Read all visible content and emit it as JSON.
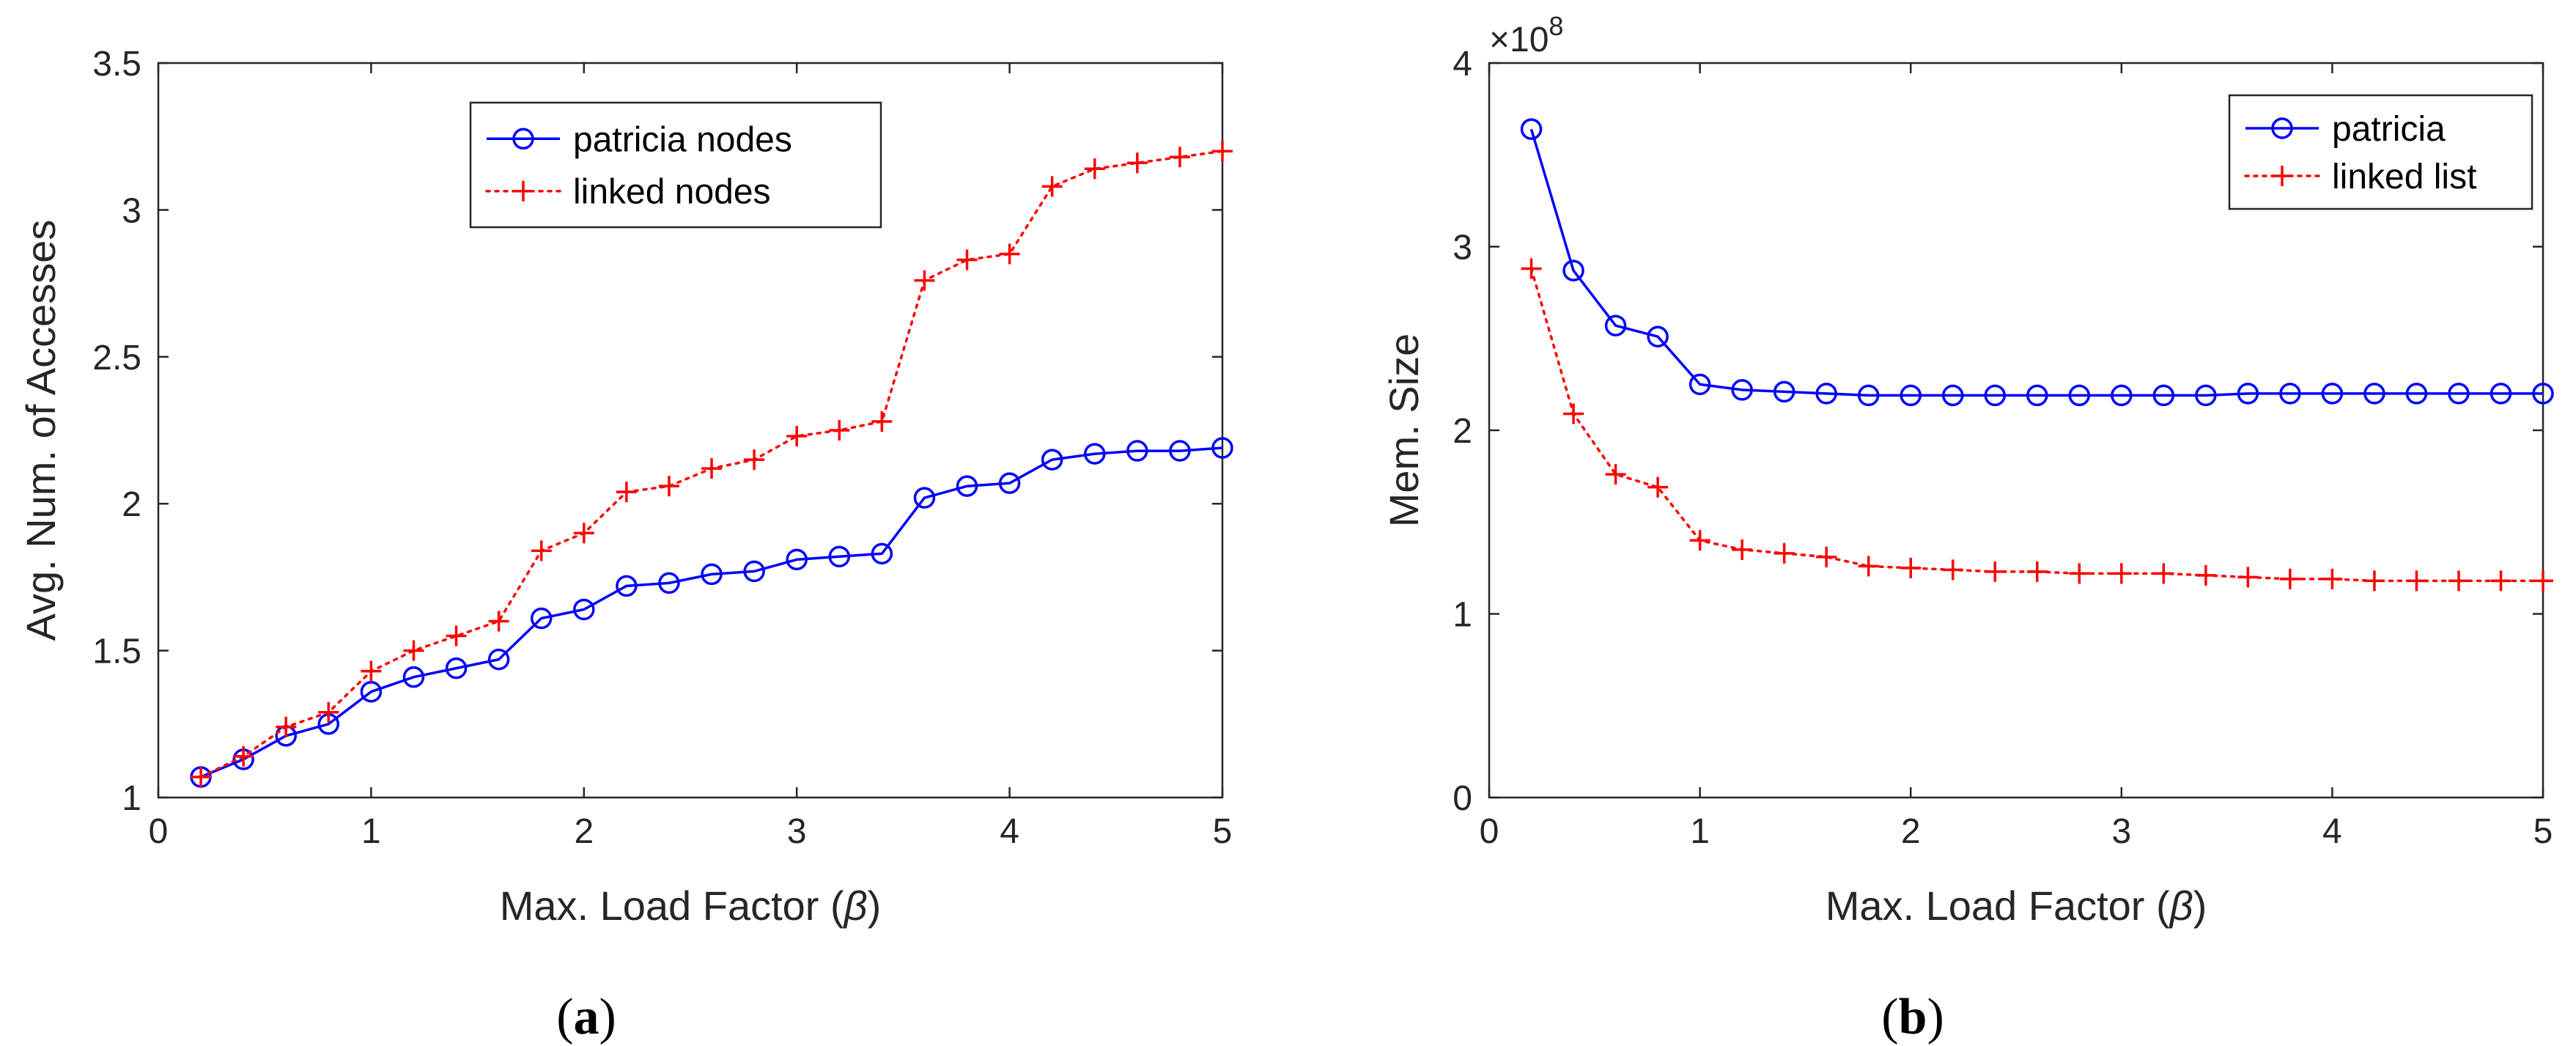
{
  "chart_data": [
    {
      "type": "line",
      "panel": "a",
      "caption_letter": "a",
      "caption_open": "(",
      "caption_close": ")",
      "title": "",
      "xlabel": "Max. Load Factor (",
      "xlabel_symbol": "β",
      "xlabel_close": ")",
      "ylabel": "Avg. Num. of Accesses",
      "xlim": [
        0,
        5
      ],
      "ylim": [
        1,
        3.5
      ],
      "xticks": [
        0,
        1,
        2,
        3,
        4,
        5
      ],
      "xtick_labels": [
        "0",
        "1",
        "2",
        "3",
        "4",
        "5"
      ],
      "yticks": [
        1,
        1.5,
        2,
        2.5,
        3,
        3.5
      ],
      "ytick_labels": [
        "1",
        "1.5",
        "2",
        "2.5",
        "3",
        "3.5"
      ],
      "legend_position": "top-right",
      "series": [
        {
          "name": "patricia nodes",
          "color": "#0000ff",
          "line": "solid",
          "marker": "circle",
          "x": [
            0.2,
            0.4,
            0.6,
            0.8,
            1.0,
            1.2,
            1.4,
            1.6,
            1.8,
            2.0,
            2.2,
            2.4,
            2.6,
            2.8,
            3.0,
            3.2,
            3.4,
            3.6,
            3.8,
            4.0,
            4.2,
            4.4,
            4.6,
            4.8,
            5.0
          ],
          "values": [
            1.07,
            1.13,
            1.21,
            1.25,
            1.36,
            1.41,
            1.44,
            1.47,
            1.61,
            1.64,
            1.72,
            1.73,
            1.76,
            1.77,
            1.81,
            1.82,
            1.83,
            2.02,
            2.06,
            2.07,
            2.15,
            2.17,
            2.18,
            2.18,
            2.19
          ]
        },
        {
          "name": "linked nodes",
          "color": "#ff0000",
          "line": "dotted",
          "marker": "plus",
          "x": [
            0.2,
            0.4,
            0.6,
            0.8,
            1.0,
            1.2,
            1.4,
            1.6,
            1.8,
            2.0,
            2.2,
            2.4,
            2.6,
            2.8,
            3.0,
            3.2,
            3.4,
            3.6,
            3.8,
            4.0,
            4.2,
            4.4,
            4.6,
            4.8,
            5.0
          ],
          "values": [
            1.07,
            1.14,
            1.24,
            1.29,
            1.43,
            1.5,
            1.55,
            1.6,
            1.84,
            1.9,
            2.04,
            2.06,
            2.12,
            2.15,
            2.23,
            2.25,
            2.28,
            2.76,
            2.83,
            2.85,
            3.08,
            3.14,
            3.16,
            3.18,
            3.2
          ]
        }
      ]
    },
    {
      "type": "line",
      "panel": "b",
      "caption_letter": "b",
      "caption_open": "(",
      "caption_close": ")",
      "title": "",
      "xlabel": "Max. Load Factor (",
      "xlabel_symbol": "β",
      "xlabel_close": ")",
      "ylabel": "Mem. Size",
      "y_exponent_base": "×10",
      "y_exponent_power": "8",
      "xlim": [
        0,
        5
      ],
      "ylim": [
        0,
        4
      ],
      "xticks": [
        0,
        1,
        2,
        3,
        4,
        5
      ],
      "xtick_labels": [
        "0",
        "1",
        "2",
        "3",
        "4",
        "5"
      ],
      "yticks": [
        0,
        1,
        2,
        3,
        4
      ],
      "ytick_labels": [
        "0",
        "1",
        "2",
        "3",
        "4"
      ],
      "legend_position": "top-right",
      "series": [
        {
          "name": "patricia",
          "color": "#0000ff",
          "line": "solid",
          "marker": "circle",
          "x": [
            0.2,
            0.4,
            0.6,
            0.8,
            1.0,
            1.2,
            1.4,
            1.6,
            1.8,
            2.0,
            2.2,
            2.4,
            2.6,
            2.8,
            3.0,
            3.2,
            3.4,
            3.6,
            3.8,
            4.0,
            4.2,
            4.4,
            4.6,
            4.8,
            5.0
          ],
          "values": [
            3.64,
            2.87,
            2.57,
            2.51,
            2.25,
            2.22,
            2.21,
            2.2,
            2.19,
            2.19,
            2.19,
            2.19,
            2.19,
            2.19,
            2.19,
            2.19,
            2.19,
            2.2,
            2.2,
            2.2,
            2.2,
            2.2,
            2.2,
            2.2,
            2.2
          ]
        },
        {
          "name": "linked list",
          "color": "#ff0000",
          "line": "dotted",
          "marker": "plus",
          "x": [
            0.2,
            0.4,
            0.6,
            0.8,
            1.0,
            1.2,
            1.4,
            1.6,
            1.8,
            2.0,
            2.2,
            2.4,
            2.6,
            2.8,
            3.0,
            3.2,
            3.4,
            3.6,
            3.8,
            4.0,
            4.2,
            4.4,
            4.6,
            4.8,
            5.0
          ],
          "values": [
            2.88,
            2.09,
            1.76,
            1.69,
            1.4,
            1.35,
            1.33,
            1.31,
            1.26,
            1.25,
            1.24,
            1.23,
            1.23,
            1.22,
            1.22,
            1.22,
            1.21,
            1.2,
            1.19,
            1.19,
            1.18,
            1.18,
            1.18,
            1.18,
            1.18
          ]
        }
      ]
    }
  ]
}
